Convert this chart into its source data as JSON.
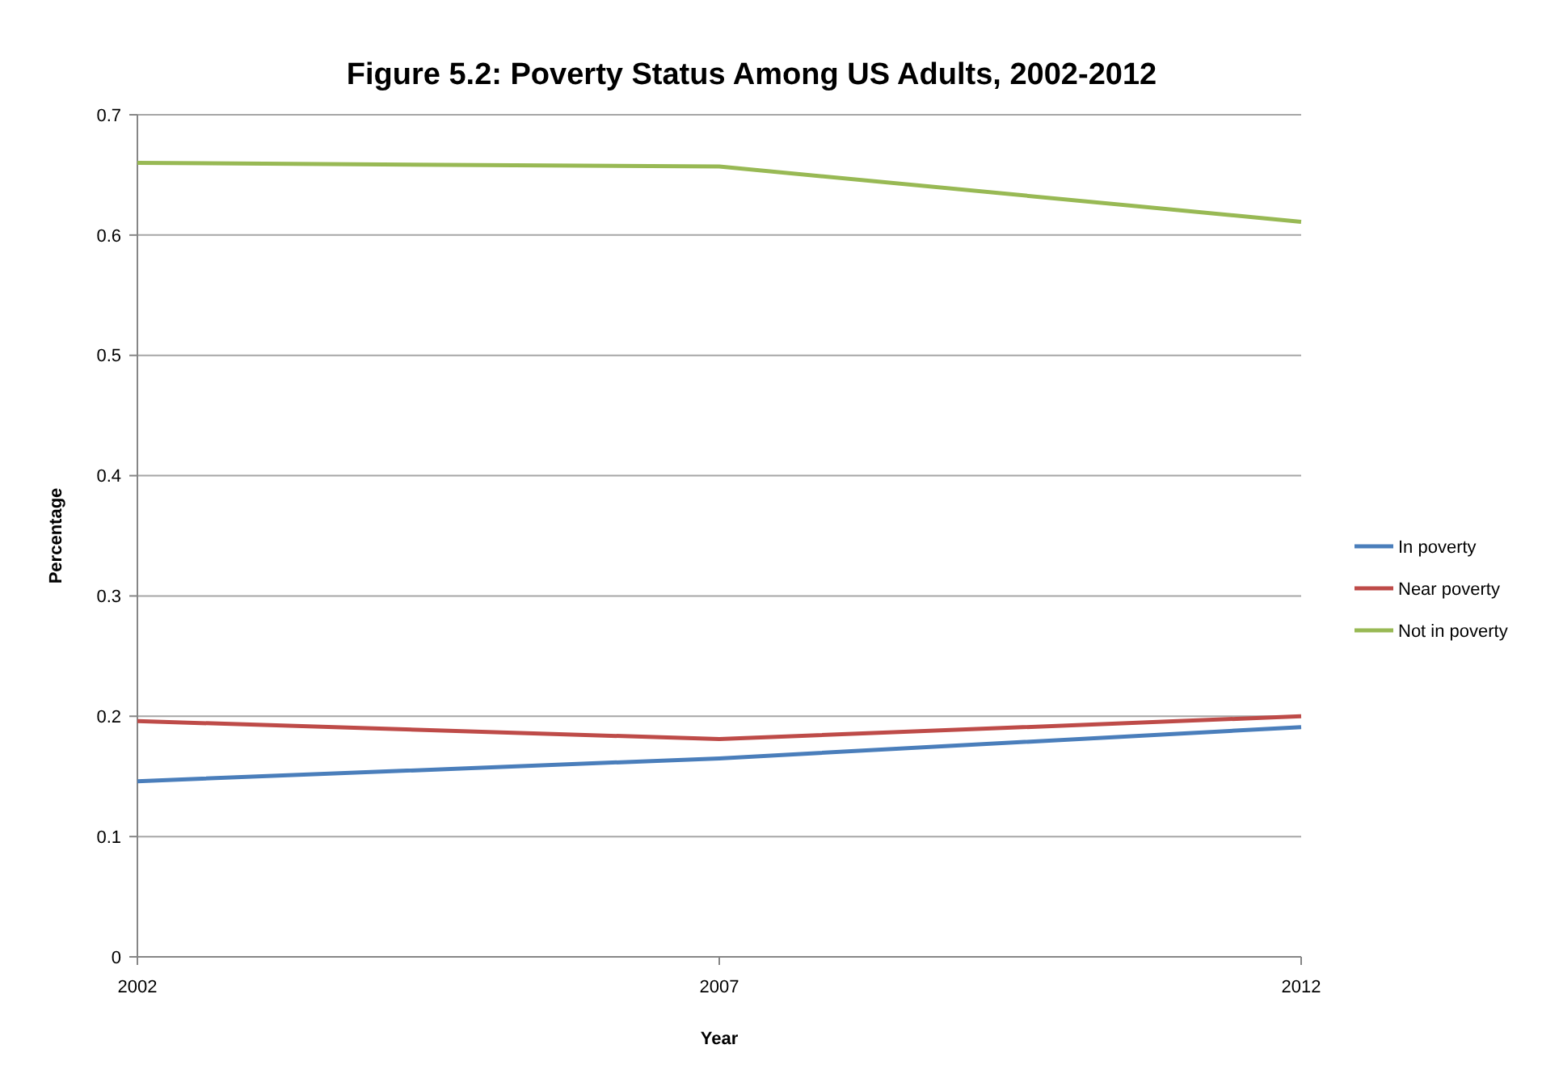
{
  "chart_data": {
    "type": "line",
    "title": "Figure 5.2: Poverty Status Among US Adults, 2002-2012",
    "xlabel": "Year",
    "ylabel": "Percentage",
    "x": [
      2002,
      2007,
      2012
    ],
    "xlim": [
      2002,
      2012
    ],
    "xticks": [
      2002,
      2007,
      2012
    ],
    "ylim": [
      0,
      0.7
    ],
    "yticks": [
      {
        "value": 0,
        "label": "0"
      },
      {
        "value": 0.1,
        "label": "0.1"
      },
      {
        "value": 0.2,
        "label": "0.2"
      },
      {
        "value": 0.3,
        "label": "0.3"
      },
      {
        "value": 0.4,
        "label": "0.4"
      },
      {
        "value": 0.5,
        "label": "0.5"
      },
      {
        "value": 0.6,
        "label": "0.6"
      },
      {
        "value": 0.7,
        "label": "0.7"
      }
    ],
    "grid": "y",
    "legend": "right",
    "marker": "none",
    "line_style": "solid",
    "series": [
      {
        "name": "In poverty",
        "color": "#4a7ebb",
        "values": [
          0.146,
          0.165,
          0.191
        ]
      },
      {
        "name": "Near poverty",
        "color": "#be4b48",
        "values": [
          0.196,
          0.181,
          0.2
        ]
      },
      {
        "name": "Not in poverty",
        "color": "#98b954",
        "values": [
          0.66,
          0.657,
          0.611
        ]
      }
    ]
  }
}
